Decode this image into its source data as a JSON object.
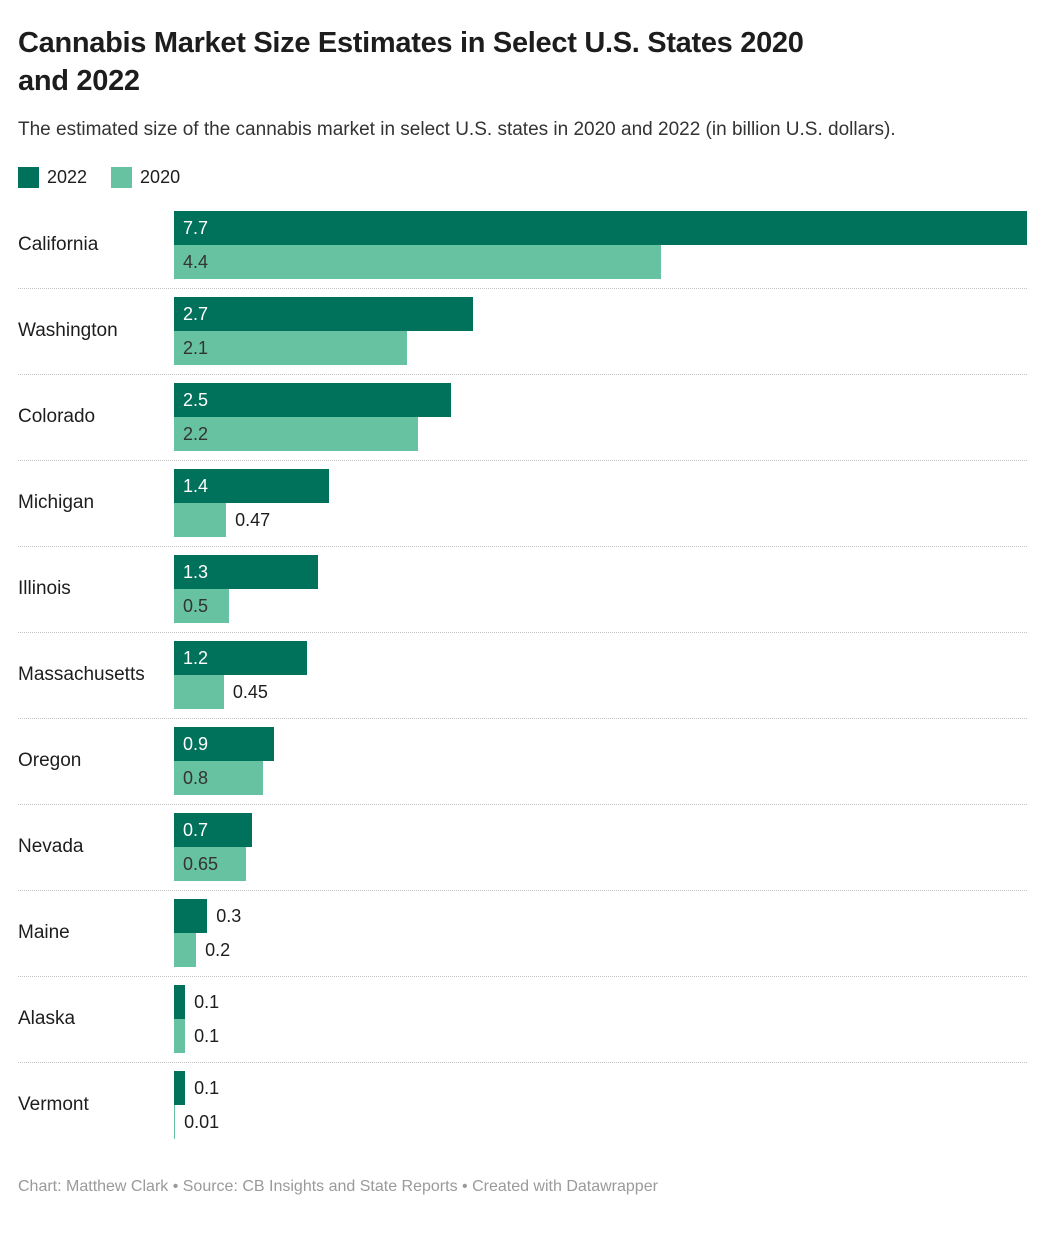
{
  "header": {
    "title_lines": [
      "Cannabis Market Size Estimates in Select U.S. States 2020",
      "and 2022"
    ],
    "subtitle": "The estimated size of the cannabis market in select U.S. states in 2020 and 2022 (in billion U.S. dollars)."
  },
  "legend": {
    "items": [
      {
        "label": "2022",
        "color": "#00715a"
      },
      {
        "label": "2020",
        "color": "#66c2a0"
      }
    ]
  },
  "chart_data": {
    "type": "bar",
    "orientation": "horizontal",
    "title": "Cannabis Market Size Estimates in Select U.S. States 2020 and 2022",
    "subtitle": "The estimated size of the cannabis market in select U.S. states in 2020 and 2022 (in billion U.S. dollars).",
    "unit": "billion U.S. dollars",
    "xlim": [
      0,
      7.7
    ],
    "grid": false,
    "legend_position": "top-left",
    "categories": [
      "California",
      "Washington",
      "Colorado",
      "Michigan",
      "Illinois",
      "Massachusetts",
      "Oregon",
      "Nevada",
      "Maine",
      "Alaska",
      "Vermont"
    ],
    "series": [
      {
        "name": "2022",
        "color": "#00715a",
        "inside_label_color": "#ffffff",
        "values": [
          7.7,
          2.7,
          2.5,
          1.4,
          1.3,
          1.2,
          0.9,
          0.7,
          0.3,
          0.1,
          0.1
        ],
        "value_labels": [
          "7.7",
          "2.7",
          "2.5",
          "1.4",
          "1.3",
          "1.2",
          "0.9",
          "0.7",
          "0.3",
          "0.1",
          "0.1"
        ],
        "label_positions": [
          "inside",
          "inside",
          "inside",
          "inside",
          "inside",
          "inside",
          "inside",
          "inside",
          "outside",
          "outside",
          "outside"
        ]
      },
      {
        "name": "2020",
        "color": "#66c2a0",
        "inside_label_color": "#333333",
        "values": [
          4.4,
          2.1,
          2.2,
          0.47,
          0.5,
          0.45,
          0.8,
          0.65,
          0.2,
          0.1,
          0.01
        ],
        "value_labels": [
          "4.4",
          "2.1",
          "2.2",
          "0.47",
          "0.5",
          "0.45",
          "0.8",
          "0.65",
          "0.2",
          "0.1",
          "0.01"
        ],
        "label_positions": [
          "inside",
          "inside",
          "inside",
          "outside",
          "inside",
          "outside",
          "inside",
          "inside",
          "outside",
          "outside",
          "outside"
        ]
      }
    ]
  },
  "footer": {
    "text": "Chart: Matthew Clark • Source: CB Insights and State Reports • Created with Datawrapper"
  }
}
